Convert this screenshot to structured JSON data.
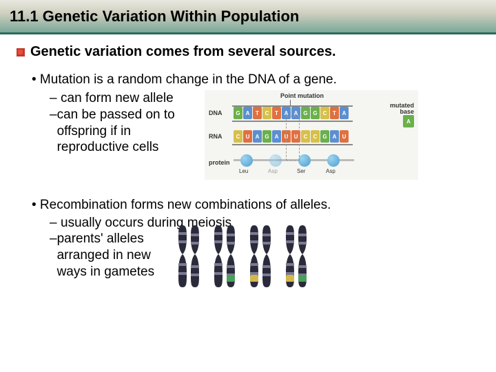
{
  "header": {
    "title": "11.1 Genetic Variation Within Population"
  },
  "subtitle": "Genetic variation comes from several sources.",
  "section1": {
    "main": "•   Mutation is a random change in the DNA of a gene.",
    "sub1": "can form new allele",
    "sub2": "can be passed on to offspring if in reproductive cells"
  },
  "section2": {
    "main": "•   Recombination forms new combinations of alleles.",
    "sub1": "usually occurs during meiosis",
    "sub2": "parents' alleles arranged in new ways in gametes"
  },
  "diagram1": {
    "title": "Point mutation",
    "labels": {
      "dna": "DNA",
      "rna": "RNA",
      "protein": "protein",
      "mutated": "mutated\nbase"
    },
    "dna_bases": [
      "G",
      "A",
      "T",
      "C",
      "T",
      "A",
      "A",
      "G",
      "G",
      "C",
      "T",
      "A"
    ],
    "rna_bases": [
      "C",
      "U",
      "A",
      "G",
      "A",
      "U",
      "U",
      "C",
      "C",
      "G",
      "A",
      "U"
    ],
    "aa": [
      "Leu",
      "Asp",
      "Ser",
      "Asp"
    ],
    "mut_base": "A",
    "colors": {
      "G": "#6ab04c",
      "A": "#5b8fd0",
      "T": "#e07040",
      "C": "#d6c04a",
      "U": "#e07040",
      "protein_line": "#999999",
      "aa_fill": "#5fb0e0",
      "bg": "#f5f5f2"
    }
  },
  "chromosomes": {
    "pairs": 4,
    "colors": {
      "dark": "#2a2a3a",
      "light": "#7a7a92",
      "highlight1": "#4aa05a",
      "highlight2": "#d4b84a"
    }
  }
}
